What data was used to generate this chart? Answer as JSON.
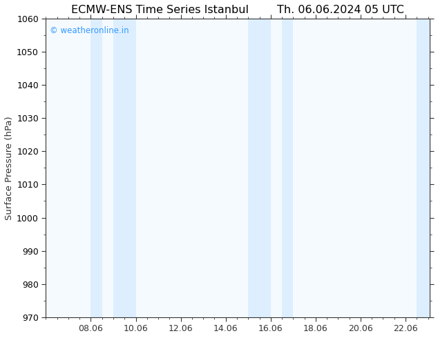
{
  "title_left": "ECMW-ENS Time Series Istanbul",
  "title_right": "Th. 06.06.2024 05 UTC",
  "ylabel": "Surface Pressure (hPa)",
  "xlim_left": 6.0,
  "xlim_right": 23.06,
  "ylim_bottom": 970,
  "ylim_top": 1060,
  "yticks": [
    970,
    980,
    990,
    1000,
    1010,
    1020,
    1030,
    1040,
    1050,
    1060
  ],
  "xtick_labels": [
    "08.06",
    "10.06",
    "12.06",
    "14.06",
    "16.06",
    "18.06",
    "20.06",
    "22.06"
  ],
  "xtick_positions": [
    8.0,
    10.0,
    12.0,
    14.0,
    16.0,
    18.0,
    20.0,
    22.0
  ],
  "shaded_bands": [
    {
      "x_start": 8.0,
      "x_end": 8.5
    },
    {
      "x_start": 9.0,
      "x_end": 10.0
    },
    {
      "x_start": 15.0,
      "x_end": 16.0
    },
    {
      "x_start": 16.5,
      "x_end": 17.0
    },
    {
      "x_start": 22.5,
      "x_end": 23.1
    }
  ],
  "band_color": "#ddeeff",
  "plot_bg_color": "#f5faff",
  "background_color": "#ffffff",
  "watermark": "© weatheronline.in",
  "watermark_color": "#3399ff",
  "title_color": "#000000",
  "axis_color": "#333333",
  "tick_color": "#333333",
  "title_fontsize": 11.5,
  "label_fontsize": 9,
  "watermark_fontsize": 8.5,
  "minor_tick_count": 4
}
